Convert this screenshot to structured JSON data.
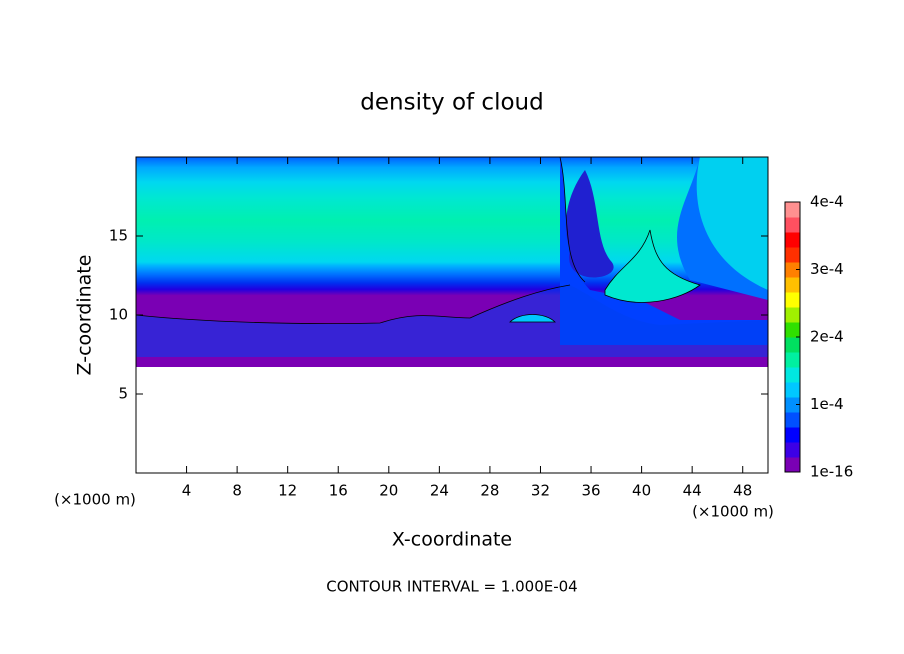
{
  "chart_data": {
    "type": "contour",
    "title": "density of cloud",
    "x_label": "X-coordinate",
    "y_label": "Z-coordinate",
    "x_unit": "(×1000 m)",
    "y_unit": "(×1000 m)",
    "xlim": [
      0,
      50
    ],
    "xticks": [
      4,
      8,
      12,
      16,
      20,
      24,
      28,
      32,
      36,
      40,
      44,
      48
    ],
    "ylim": [
      0,
      20
    ],
    "yticks": [
      5,
      10,
      15
    ],
    "colorbar": {
      "lim": [
        1e-16,
        0.0004
      ],
      "ticks": [
        {
          "value": 1e-16,
          "label": "1e-16"
        },
        {
          "value": 0.0001,
          "label": "1e-4"
        },
        {
          "value": 0.0002,
          "label": "2e-4"
        },
        {
          "value": 0.0003,
          "label": "3e-4"
        },
        {
          "value": 0.0004,
          "label": "4e-4"
        }
      ],
      "colors": [
        "#7a00b4",
        "#3c00e6",
        "#0000ff",
        "#0050ff",
        "#0090ff",
        "#00c8ff",
        "#00e8e0",
        "#00f0a0",
        "#00e060",
        "#30e000",
        "#a0f000",
        "#ffff00",
        "#ffc000",
        "#ff8000",
        "#ff3000",
        "#ff0000",
        "#ff5060",
        "#ff9090"
      ]
    },
    "footnote": "CONTOUR INTERVAL = 1.000E-04"
  }
}
